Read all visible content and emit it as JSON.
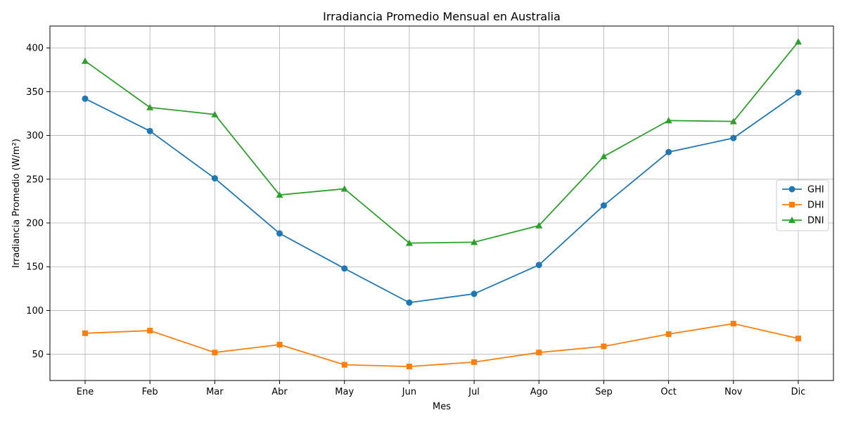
{
  "chart_data": {
    "type": "line",
    "title": "Irradiancia Promedio Mensual en Australia",
    "xlabel": "Mes",
    "ylabel": "Irradiancia Promedio (W/m²)",
    "categories": [
      "Ene",
      "Feb",
      "Mar",
      "Abr",
      "May",
      "Jun",
      "Jul",
      "Ago",
      "Sep",
      "Oct",
      "Nov",
      "Dic"
    ],
    "ylim": [
      20,
      425
    ],
    "yticks": [
      50,
      100,
      150,
      200,
      250,
      300,
      350,
      400
    ],
    "grid": true,
    "legend_position": "center-right",
    "series": [
      {
        "name": "GHI",
        "color": "#1f77b4",
        "marker": "circle",
        "values": [
          342,
          305,
          251,
          188,
          148,
          109,
          119,
          152,
          220,
          281,
          297,
          349
        ]
      },
      {
        "name": "DHI",
        "color": "#ff7f0e",
        "marker": "square",
        "values": [
          74,
          77,
          52,
          61,
          38,
          36,
          41,
          52,
          59,
          73,
          85,
          68
        ]
      },
      {
        "name": "DNI",
        "color": "#2ca02c",
        "marker": "triangle",
        "values": [
          385,
          332,
          324,
          232,
          239,
          177,
          178,
          197,
          276,
          317,
          316,
          407
        ]
      }
    ]
  }
}
